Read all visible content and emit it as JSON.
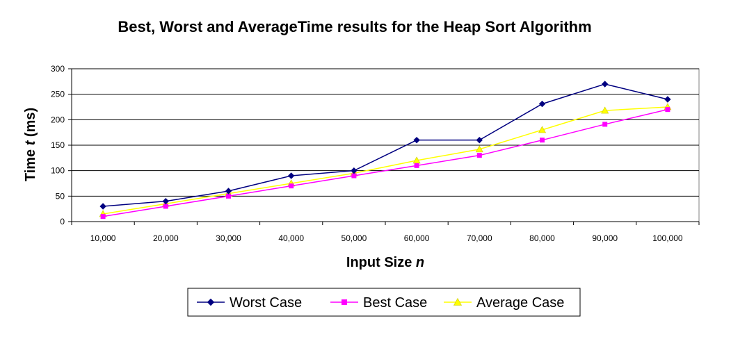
{
  "chart_data": {
    "type": "line",
    "title": "Best, Worst and AverageTime results for the Heap Sort Algorithm",
    "xlabel": "Input Size n",
    "xlabel_main": "Input Size ",
    "xlabel_var": "n",
    "ylabel": "Time t (ms)",
    "ylabel_main": "Time ",
    "ylabel_var": "t",
    "ylabel_unit": " (ms)",
    "categories": [
      "10,000",
      "20,000",
      "30,000",
      "40,000",
      "50,000",
      "60,000",
      "70,000",
      "80,000",
      "90,000",
      "100,000"
    ],
    "ylim": [
      0,
      300
    ],
    "yticks": [
      0,
      50,
      100,
      150,
      200,
      250,
      300
    ],
    "grid": true,
    "legend_position": "bottom",
    "series": [
      {
        "name": "Worst Case",
        "color": "#000080",
        "marker": "diamond",
        "values": [
          30,
          40,
          60,
          90,
          100,
          160,
          160,
          231,
          270,
          240
        ]
      },
      {
        "name": "Best Case",
        "color": "#FF00FF",
        "marker": "square",
        "values": [
          10,
          30,
          50,
          70,
          90,
          110,
          130,
          160,
          191,
          220
        ]
      },
      {
        "name": "Average Case",
        "color": "#FFFF00",
        "marker": "triangle",
        "values": [
          15,
          35,
          55,
          75,
          95,
          120,
          142,
          180,
          218,
          225
        ]
      }
    ]
  }
}
